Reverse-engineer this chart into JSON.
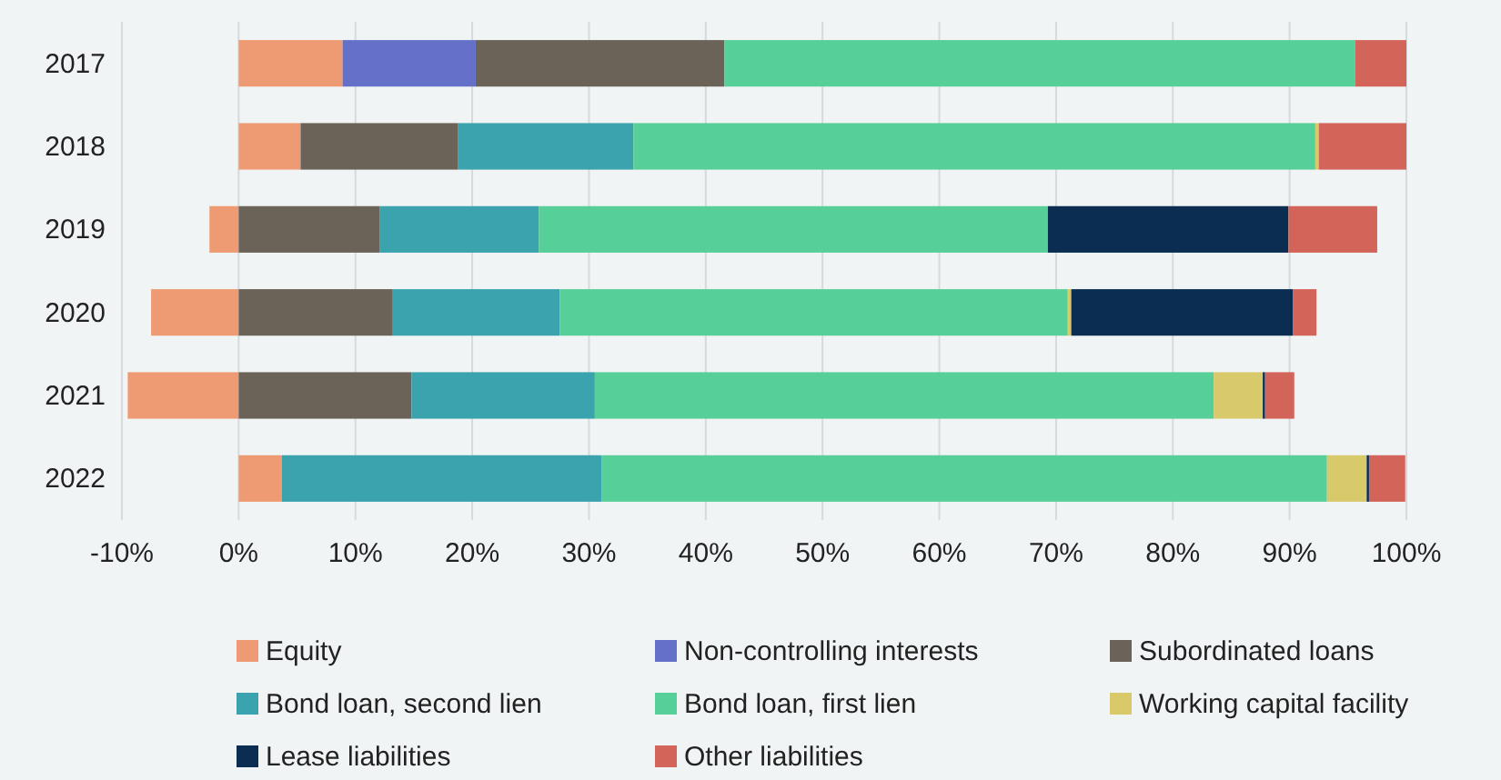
{
  "chart_data": {
    "type": "bar",
    "orientation": "horizontal",
    "stacked": true,
    "categories": [
      "2017",
      "2018",
      "2019",
      "2020",
      "2021",
      "2022"
    ],
    "series": [
      {
        "name": "Equity",
        "color": "#ee9a72",
        "values": [
          8.9,
          5.3,
          -2.5,
          -7.5,
          -9.5,
          3.7
        ]
      },
      {
        "name": "Non-controlling interests",
        "color": "#6570c8",
        "values": [
          11.4,
          null,
          null,
          null,
          null,
          null
        ]
      },
      {
        "name": "Subordinated loans",
        "color": "#6b6358",
        "values": [
          21.3,
          13.5,
          12.1,
          13.2,
          14.8,
          null
        ]
      },
      {
        "name": "Bond loan, second lien",
        "color": "#3aa3ad",
        "values": [
          null,
          15.0,
          13.6,
          14.3,
          15.7,
          27.4
        ]
      },
      {
        "name": "Bond loan, first lien",
        "color": "#57cf98",
        "values": [
          54.0,
          58.4,
          43.6,
          43.5,
          53.0,
          62.1
        ]
      },
      {
        "name": "Working capital facility",
        "color": "#d8c96a",
        "values": [
          null,
          0.3,
          null,
          0.3,
          4.2,
          3.4
        ]
      },
      {
        "name": "Lease liabilities",
        "color": "#0b2d52",
        "values": [
          null,
          null,
          20.6,
          19.0,
          0.2,
          0.2
        ]
      },
      {
        "name": "Other liabilities",
        "color": "#d2645a",
        "values": [
          4.4,
          7.5,
          7.6,
          2.0,
          2.5,
          3.1
        ]
      }
    ],
    "xlim": [
      -10,
      100
    ],
    "xticks": [
      {
        "value": -10,
        "label": "-10%"
      },
      {
        "value": 0,
        "label": "0%"
      },
      {
        "value": 10,
        "label": "10%"
      },
      {
        "value": 20,
        "label": "20%"
      },
      {
        "value": 30,
        "label": "30%"
      },
      {
        "value": 40,
        "label": "40%"
      },
      {
        "value": 50,
        "label": "50%"
      },
      {
        "value": 60,
        "label": "60%"
      },
      {
        "value": 70,
        "label": "70%"
      },
      {
        "value": 80,
        "label": "80%"
      },
      {
        "value": 90,
        "label": "90%"
      },
      {
        "value": 100,
        "label": "100%"
      }
    ],
    "grid": "x",
    "legend": "bottom"
  }
}
